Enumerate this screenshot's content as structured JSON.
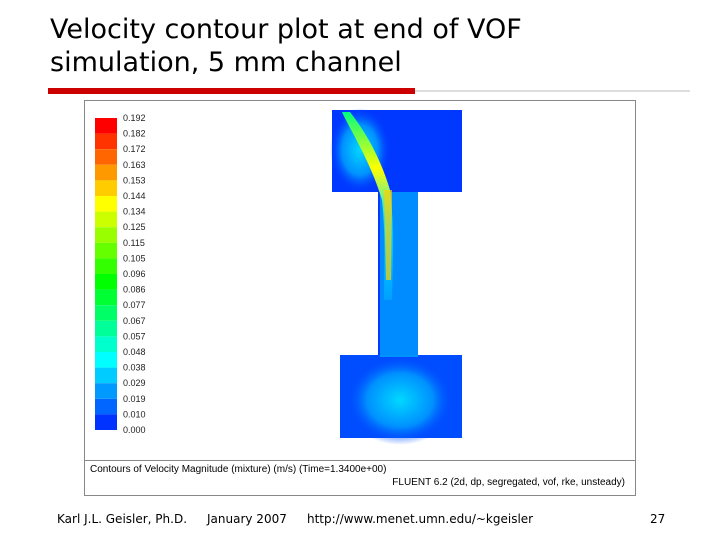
{
  "header": {
    "title_lines": [
      "Velocity contour plot at end of VOF",
      "simulation, 5 mm channel"
    ]
  },
  "figure": {
    "legend_labels": [
      "0.192",
      "0.182",
      "0.172",
      "0.163",
      "0.153",
      "0.144",
      "0.134",
      "0.125",
      "0.115",
      "0.105",
      "0.096",
      "0.086",
      "0.077",
      "0.067",
      "0.057",
      "0.048",
      "0.038",
      "0.029",
      "0.019",
      "0.010",
      "0.000"
    ],
    "caption_lines": [
      "Contours of Velocity Magnitude (mixture)  (m/s)   (Time=1.3400e+00)",
      "FLUENT 6.2 (2d, dp, segregated, vof, rke, unsteady)"
    ]
  },
  "footer": {
    "author": "Karl J.L. Geisler, Ph.D.",
    "date": "January 2007",
    "url": "http://www.menet.umn.edu/~kgeisler",
    "page": "27"
  }
}
